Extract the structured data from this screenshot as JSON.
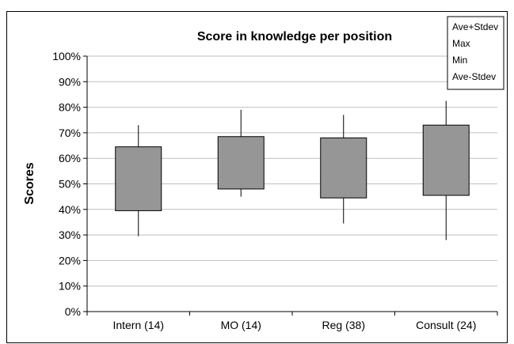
{
  "chart_data": {
    "type": "box",
    "title": "Score in knowledge per position",
    "xlabel": "",
    "ylabel": "Scores",
    "ylim": [
      0,
      100
    ],
    "y_tick_labels": [
      "0%",
      "10%",
      "20%",
      "30%",
      "40%",
      "50%",
      "60%",
      "70%",
      "80%",
      "90%",
      "100%"
    ],
    "grid": true,
    "legend": {
      "position": "top-right",
      "entries": [
        "Ave+Stdev",
        "Max",
        "Min",
        "Ave-Stdev"
      ]
    },
    "categories": [
      "Intern (14)",
      "MO (14)",
      "Reg (38)",
      "Consult (24)"
    ],
    "series": [
      {
        "category": "Intern (14)",
        "ave_plus_stdev": 64.5,
        "max": 73,
        "min": 29.5,
        "ave_minus_stdev": 39.5
      },
      {
        "category": "MO (14)",
        "ave_plus_stdev": 68.5,
        "max": 79,
        "min": 45,
        "ave_minus_stdev": 48
      },
      {
        "category": "Reg (38)",
        "ave_plus_stdev": 68,
        "max": 77,
        "min": 34.5,
        "ave_minus_stdev": 44.5
      },
      {
        "category": "Consult (24)",
        "ave_plus_stdev": 73,
        "max": 82.5,
        "min": 28,
        "ave_minus_stdev": 45.5
      }
    ],
    "colors": {
      "box_fill": "#969696",
      "line": "#000000",
      "grid": "#bfbfbf"
    }
  }
}
